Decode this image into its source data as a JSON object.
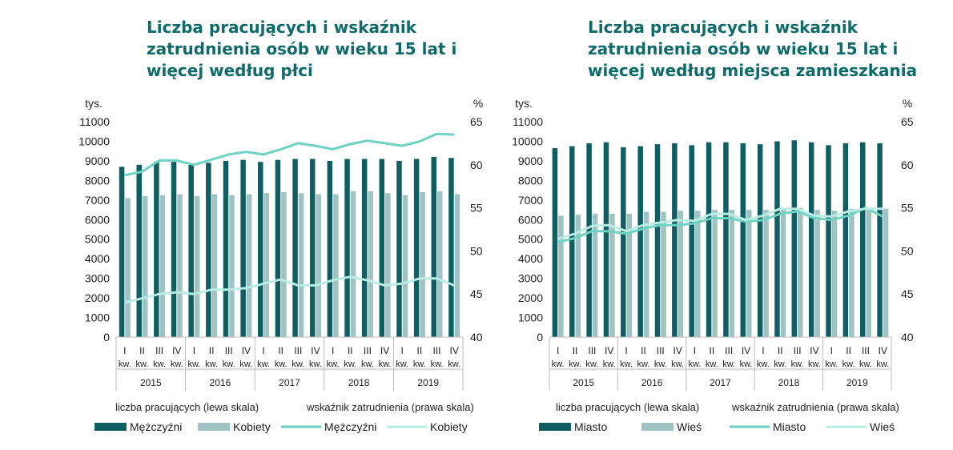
{
  "colors": {
    "title": "#0f6a6a",
    "bar_dark": "#0f5f62",
    "bar_light": "#9fc2c2",
    "line_dark": "#6ed2c2",
    "line_light": "#b9ece3"
  },
  "chart_data": [
    {
      "type": "bar+line",
      "title": "Liczba pracujących i wskaźnik zatrudnienia osób w wieku 15 lat i więcej według płci",
      "left_unit": "tys.",
      "right_unit": "%",
      "left_ylim": [
        0,
        11000
      ],
      "right_ylim": [
        40,
        65
      ],
      "left_ticks": [
        "0",
        "1000",
        "2000",
        "3000",
        "4000",
        "5000",
        "6000",
        "7000",
        "8000",
        "9000",
        "10000",
        "11000"
      ],
      "right_ticks": [
        "40",
        "45",
        "50",
        "55",
        "60",
        "65"
      ],
      "quarters": [
        "I kw.",
        "II kw.",
        "III kw.",
        "IV kw.",
        "I kw.",
        "II kw.",
        "III kw.",
        "IV kw.",
        "I kw.",
        "II kw.",
        "III kw.",
        "IV kw.",
        "I kw.",
        "II kw.",
        "III kw.",
        "IV kw.",
        "I kw.",
        "II kw.",
        "III kw.",
        "IV kw."
      ],
      "years": [
        "2015",
        "2016",
        "2017",
        "2018",
        "2019"
      ],
      "legend_group_left": "liczba pracujących (lewa skala)",
      "legend_group_right": "wskaźnik zatrudnienia (prawa skala)",
      "bar_series": [
        {
          "name": "Mężczyźni",
          "values": [
            8700,
            8800,
            8950,
            8950,
            8800,
            8900,
            9000,
            9050,
            8950,
            9050,
            9100,
            9100,
            9000,
            9100,
            9100,
            9100,
            9000,
            9100,
            9200,
            9150
          ]
        },
        {
          "name": "Kobiety",
          "values": [
            7100,
            7200,
            7250,
            7300,
            7200,
            7300,
            7250,
            7300,
            7350,
            7400,
            7350,
            7300,
            7300,
            7450,
            7450,
            7350,
            7250,
            7400,
            7450,
            7300
          ]
        }
      ],
      "line_series": [
        {
          "name": "Mężczyźni",
          "values": [
            58.8,
            59.2,
            60.5,
            60.5,
            60.0,
            60.6,
            61.2,
            61.5,
            61.2,
            61.8,
            62.5,
            62.2,
            61.8,
            62.4,
            62.8,
            62.5,
            62.2,
            62.7,
            63.6,
            63.5
          ]
        },
        {
          "name": "Kobiety",
          "values": [
            44.0,
            44.5,
            45.0,
            45.2,
            45.0,
            45.5,
            45.5,
            45.7,
            46.2,
            46.7,
            46.0,
            46.0,
            46.6,
            47.0,
            46.6,
            46.0,
            46.2,
            46.8,
            46.8,
            46.0
          ]
        }
      ]
    },
    {
      "type": "bar+line",
      "title": "Liczba pracujących i wskaźnik zatrudnienia osób w wieku 15 lat i więcej według miejsca zamieszkania",
      "left_unit": "tys.",
      "right_unit": "%",
      "left_ylim": [
        0,
        11000
      ],
      "right_ylim": [
        40,
        65
      ],
      "left_ticks": [
        "0",
        "1000",
        "2000",
        "3000",
        "4000",
        "5000",
        "6000",
        "7000",
        "8000",
        "9000",
        "10000",
        "11000"
      ],
      "right_ticks": [
        "40",
        "45",
        "50",
        "55",
        "60",
        "65"
      ],
      "quarters": [
        "I kw.",
        "II kw.",
        "III kw.",
        "IV kw.",
        "I kw.",
        "II kw.",
        "III kw.",
        "IV kw.",
        "I kw.",
        "II kw.",
        "III kw.",
        "IV kw.",
        "I kw.",
        "II kw.",
        "III kw.",
        "IV kw.",
        "I kw.",
        "II kw.",
        "III kw.",
        "IV kw."
      ],
      "years": [
        "2015",
        "2016",
        "2017",
        "2018",
        "2019"
      ],
      "legend_group_left": "liczba pracujących (lewa skala)",
      "legend_group_right": "wskaźnik zatrudnienia (prawa skala)",
      "bar_series": [
        {
          "name": "Miasto",
          "values": [
            9650,
            9750,
            9900,
            9950,
            9700,
            9750,
            9850,
            9900,
            9800,
            9950,
            9950,
            9900,
            9850,
            10000,
            10050,
            9950,
            9800,
            9900,
            9950,
            9900
          ]
        },
        {
          "name": "Wieś",
          "values": [
            6200,
            6250,
            6300,
            6300,
            6300,
            6400,
            6400,
            6450,
            6450,
            6500,
            6500,
            6500,
            6500,
            6600,
            6600,
            6500,
            6450,
            6550,
            6600,
            6550
          ]
        }
      ],
      "line_series": [
        {
          "name": "Miasto",
          "values": [
            51.0,
            51.5,
            52.3,
            52.3,
            52.0,
            52.6,
            53.0,
            53.0,
            53.2,
            53.8,
            53.8,
            53.4,
            53.6,
            54.3,
            54.6,
            53.8,
            53.6,
            54.1,
            55.0,
            54.0
          ]
        },
        {
          "name": "Wieś",
          "values": [
            51.4,
            52.0,
            52.9,
            53.0,
            52.3,
            53.0,
            53.3,
            53.6,
            53.5,
            54.3,
            54.3,
            53.6,
            54.1,
            54.9,
            54.9,
            54.1,
            54.0,
            54.6,
            54.9,
            54.9
          ]
        }
      ]
    }
  ]
}
